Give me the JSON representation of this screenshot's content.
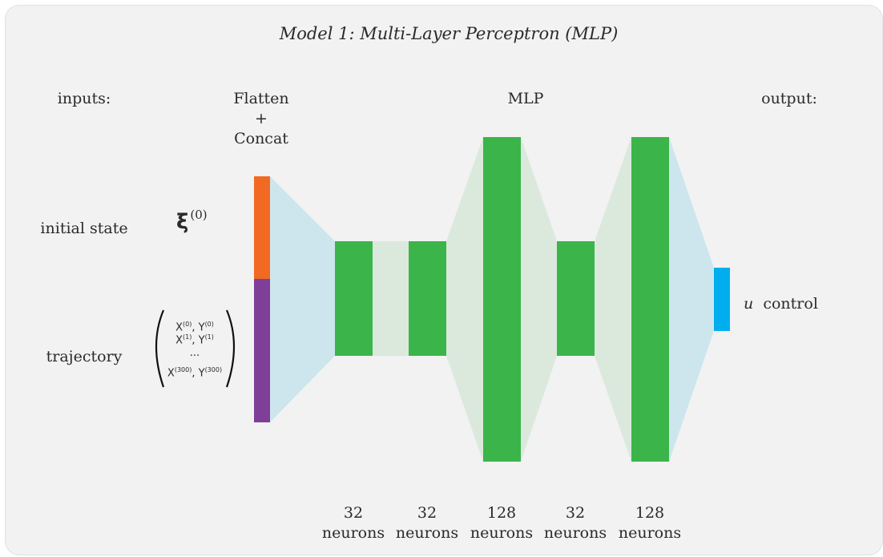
{
  "title": "Model 1: Multi-Layer Perceptron (MLP)",
  "headers": {
    "inputs": "inputs:",
    "flatten_lines": [
      "Flatten",
      "+",
      "Concat"
    ],
    "mlp": "MLP",
    "output": "output:"
  },
  "inputs": {
    "initial_state": {
      "label": "initial state",
      "symbol": "ξ",
      "sup": "(0)"
    },
    "trajectory": {
      "label": "trajectory",
      "rows": [
        {
          "a": "X",
          "as": "(0)",
          "b": "Y",
          "bs": "(0)"
        },
        {
          "a": "X",
          "as": "(1)",
          "b": "Y",
          "bs": "(1)"
        },
        {
          "dots": "..."
        },
        {
          "a": "X",
          "as": "(300)",
          "b": "Y",
          "bs": "(300)"
        }
      ]
    }
  },
  "output": {
    "symbol": "u",
    "label": "control"
  },
  "layers": [
    {
      "count": "32",
      "unit": "neurons"
    },
    {
      "count": "32",
      "unit": "neurons"
    },
    {
      "count": "128",
      "unit": "neurons"
    },
    {
      "count": "32",
      "unit": "neurons"
    },
    {
      "count": "128",
      "unit": "neurons"
    }
  ],
  "colors": {
    "background": "#f2f2f2",
    "layer": "#3bb54a",
    "initial_state_input": "#f26a21",
    "trajectory_input": "#7f3f98",
    "output": "#00aeef",
    "connection_blue": "#cde6ee",
    "connection_green": "#dbe9dd"
  }
}
